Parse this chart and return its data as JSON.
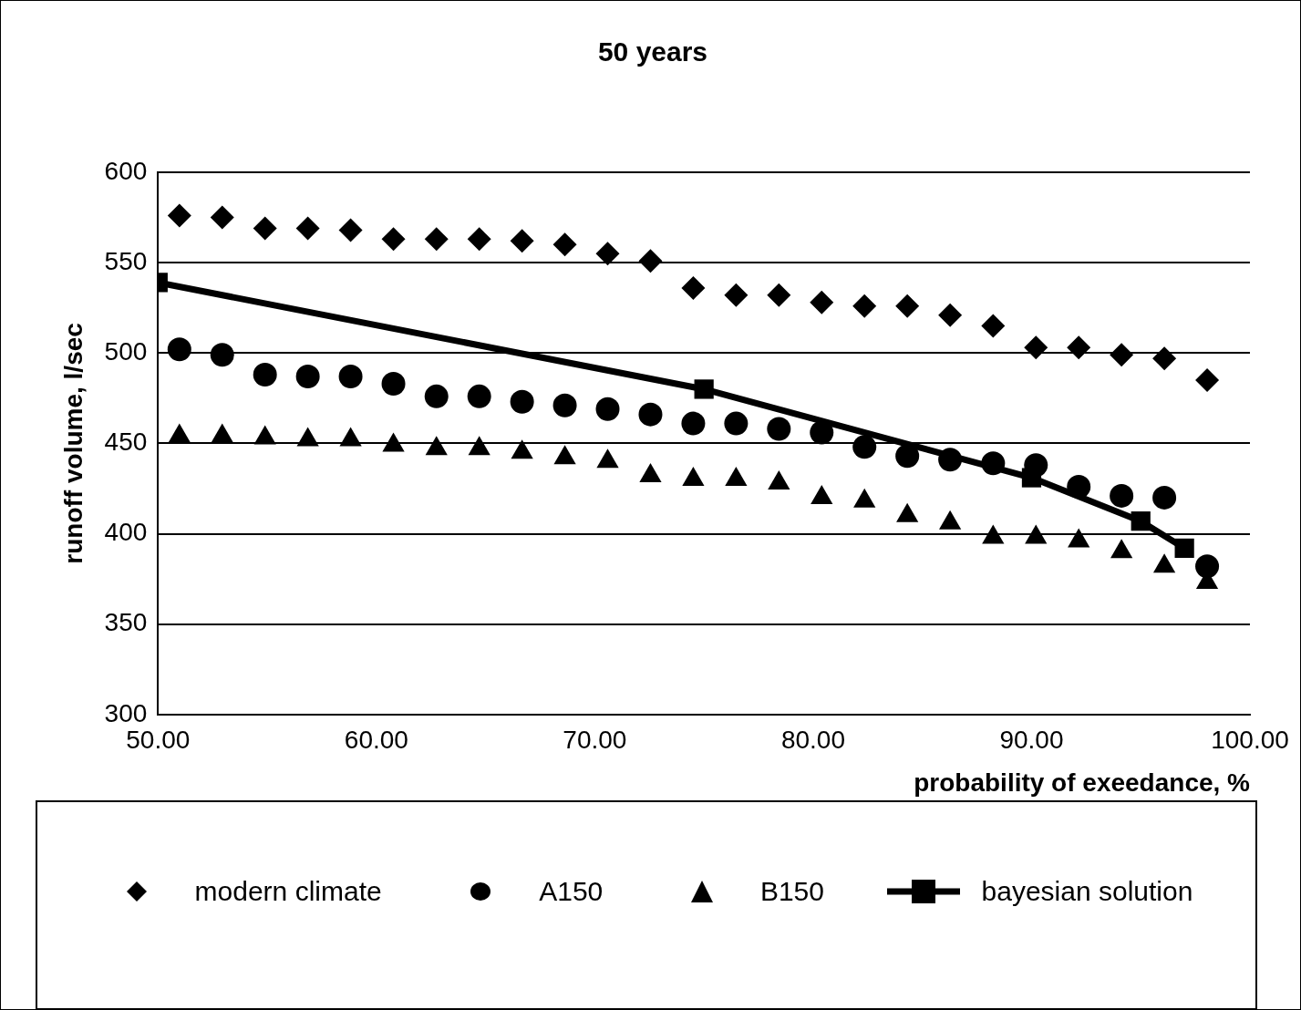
{
  "chart_data": {
    "type": "scatter",
    "title": "50 years",
    "xlabel": "probability of exeedance, %",
    "ylabel": "runoff volume, l/sec",
    "x": [
      50.98,
      52.94,
      54.9,
      56.86,
      58.82,
      60.78,
      62.75,
      64.71,
      66.67,
      68.63,
      70.59,
      72.55,
      74.51,
      76.47,
      78.43,
      80.39,
      82.35,
      84.31,
      86.27,
      88.24,
      90.2,
      92.16,
      94.12,
      96.08,
      98.04
    ],
    "series": [
      {
        "name": "modern climate",
        "color": "#000000",
        "marker": "diamond",
        "values": [
          576,
          575,
          569,
          569,
          568,
          563,
          563,
          563,
          562,
          560,
          555,
          551,
          536,
          532,
          532,
          528,
          526,
          526,
          521,
          515,
          503,
          503,
          499,
          497,
          485
        ]
      },
      {
        "name": "A150",
        "color": "#000000",
        "marker": "circle",
        "values": [
          502,
          499,
          488,
          487,
          487,
          483,
          476,
          476,
          473,
          471,
          469,
          466,
          461,
          461,
          458,
          456,
          448,
          443,
          441,
          439,
          438,
          426,
          421,
          420,
          382
        ]
      },
      {
        "name": "B150",
        "color": "#000000",
        "marker": "triangle",
        "values": [
          454,
          454,
          453,
          452,
          452,
          449,
          447,
          447,
          445,
          442,
          440,
          432,
          430,
          430,
          428,
          420,
          418,
          410,
          406,
          398,
          398,
          396,
          390,
          382,
          373
        ]
      },
      {
        "name": "bayesian solution",
        "type": "line",
        "color": "#000000",
        "marker": "square",
        "line_style": "solid",
        "x": [
          50,
          75,
          90,
          95,
          97
        ],
        "values": [
          539,
          480,
          431,
          407,
          392
        ]
      }
    ],
    "xlim": [
      50,
      100
    ],
    "xticks": [
      {
        "value": 50,
        "label": "50.00"
      },
      {
        "value": 60,
        "label": "60.00"
      },
      {
        "value": 70,
        "label": "70.00"
      },
      {
        "value": 80,
        "label": "80.00"
      },
      {
        "value": 90,
        "label": "90.00"
      },
      {
        "value": 100,
        "label": "100.00"
      }
    ],
    "ylim": [
      300,
      600
    ],
    "yticks": [
      300,
      350,
      400,
      450,
      500,
      550,
      600
    ],
    "grid": "y",
    "legend": "bottom"
  }
}
